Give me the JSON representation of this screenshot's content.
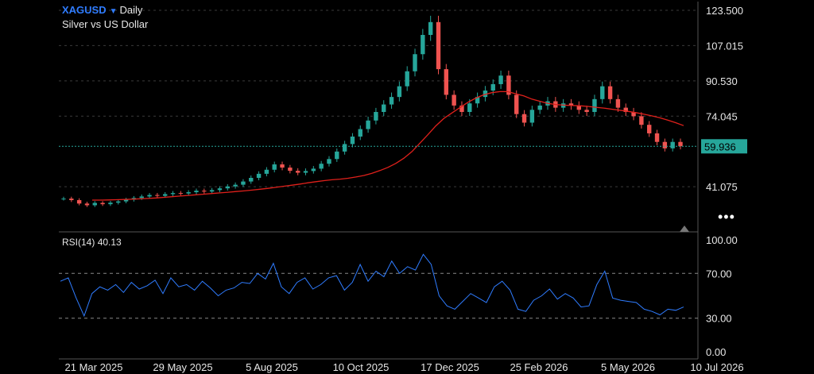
{
  "header": {
    "symbol": "XAGUSD",
    "interval": "Daily",
    "subtitle": "Silver vs US Dollar"
  },
  "indicator": {
    "name": "RSI(14)",
    "value": "40.13"
  },
  "colors": {
    "up": "#26a69a",
    "down": "#ef5350",
    "ma": "#e0201b",
    "rsi": "#2f7cff",
    "last": "#26a69a",
    "grid": "#3a3a3a"
  },
  "chart_data": [
    {
      "type": "candlestick",
      "title": "XAGUSD Daily",
      "subtitle": "Silver vs US Dollar",
      "x_labels": [
        "21 Mar 2025",
        "29 May 2025",
        "5 Aug 2025",
        "10 Oct 2025",
        "17 Dec 2025",
        "25 Feb 2026",
        "5 May 2026",
        "10 Jul 2026"
      ],
      "y_ticks": [
        "123.500",
        "107.015",
        "90.530",
        "74.045",
        "41.075"
      ],
      "ylim": [
        28.5,
        123.5
      ],
      "last_price": "59.936",
      "series": [
        {
          "name": "close",
          "values": [
            35.5,
            34.8,
            33.2,
            32.4,
            33.5,
            32.9,
            33.6,
            34.2,
            35.0,
            35.8,
            36.5,
            37.2,
            36.8,
            37.6,
            38.1,
            37.9,
            38.5,
            39.2,
            38.8,
            39.5,
            40.3,
            41.2,
            42.0,
            43.5,
            45.2,
            47.1,
            49.0,
            51.5,
            50.0,
            48.5,
            47.6,
            48.4,
            49.5,
            51.8,
            54.0,
            57.5,
            61.0,
            64.5,
            68.0,
            72.0,
            76.0,
            79.5,
            83.0,
            88.0,
            95.0,
            103.0,
            112.0,
            118.0,
            96.0,
            84.0,
            79.0,
            76.0,
            80.0,
            83.0,
            86.0,
            89.0,
            93.0,
            84.0,
            75.0,
            71.0,
            77.0,
            79.0,
            81.0,
            78.0,
            80.0,
            79.0,
            77.0,
            76.0,
            82.0,
            88.0,
            82.0,
            78.0,
            76.0,
            74.0,
            70.0,
            66.0,
            62.0,
            59.0,
            62.0,
            60.0
          ]
        },
        {
          "name": "moving average",
          "values": [
            34.8,
            34.8,
            34.9,
            35.0,
            35.1,
            35.2,
            35.4,
            35.6,
            35.8,
            36.1,
            36.4,
            36.7,
            37.0,
            37.3,
            37.6,
            37.9,
            38.2,
            38.5,
            38.8,
            39.1,
            39.5,
            39.9,
            40.3,
            40.8,
            41.3,
            41.8,
            42.3,
            42.9,
            43.4,
            43.9,
            44.3,
            44.6,
            45.0,
            45.6,
            46.3,
            47.3,
            48.6,
            50.1,
            52.0,
            54.4,
            57.5,
            61.4,
            65.4,
            69.5,
            73.0,
            75.5,
            78.0,
            80.5,
            82.5,
            84.0,
            85.0,
            85.5,
            85.5,
            84.5,
            83.5,
            82.0,
            81.0,
            80.0,
            79.5,
            79.2,
            79.0,
            78.9,
            78.6,
            78.2,
            77.8,
            77.3,
            76.8,
            76.3,
            75.7,
            75.0,
            74.2,
            73.3,
            72.2,
            71.0,
            69.6
          ]
        },
        {
          "name": "RSI(14)",
          "values": [
            63,
            66,
            48,
            32,
            52,
            58,
            55,
            60,
            53,
            62,
            56,
            59,
            64,
            52,
            66,
            58,
            60,
            55,
            63,
            57,
            50,
            55,
            57,
            62,
            61,
            70,
            65,
            79,
            58,
            52,
            62,
            66,
            56,
            60,
            66,
            68,
            55,
            62,
            78,
            63,
            72,
            67,
            81,
            70,
            76,
            73,
            87,
            78,
            50,
            41,
            38,
            45,
            52,
            48,
            44,
            58,
            63,
            55,
            38,
            36,
            46,
            50,
            56,
            47,
            52,
            48,
            40,
            41,
            60,
            72,
            48,
            46,
            45,
            44,
            38,
            36,
            33,
            38,
            37,
            40
          ]
        }
      ]
    },
    {
      "type": "line",
      "title": "RSI(14) 40.13",
      "y_ticks": [
        "100.00",
        "70.00",
        "30.00",
        "0.00"
      ],
      "ylim": [
        0,
        100
      ],
      "levels": [
        70,
        30
      ]
    }
  ]
}
